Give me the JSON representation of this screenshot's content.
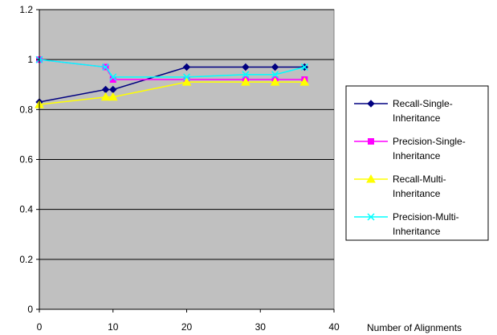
{
  "chart_data": {
    "type": "line",
    "xlabel": "Number of Alignments",
    "ylabel": "",
    "title": "",
    "xlim": [
      0,
      40
    ],
    "ylim": [
      0,
      1.2
    ],
    "x_ticks": [
      0,
      10,
      20,
      30,
      40
    ],
    "y_ticks": [
      "0",
      "0.2",
      "0.4",
      "0.6",
      "0.8",
      "1",
      "1.2"
    ],
    "y_tick_values": [
      0,
      0.2,
      0.4,
      0.6,
      0.8,
      1.0,
      1.2
    ],
    "grid": "horizontal",
    "plot_background": "#c0c0c0",
    "legend_position": "right",
    "series": [
      {
        "name": "Recall-Single-Inheritance",
        "legend_lines": [
          "Recall-Single-",
          "Inheritance"
        ],
        "color": "#000080",
        "marker": "diamond",
        "x": [
          0,
          9,
          10,
          20,
          28,
          32,
          36
        ],
        "y": [
          0.83,
          0.88,
          0.88,
          0.97,
          0.97,
          0.97,
          0.97
        ]
      },
      {
        "name": "Precision-Single-Inheritance",
        "legend_lines": [
          "Precision-Single-",
          "Inheritance"
        ],
        "color": "#ff00ff",
        "marker": "square",
        "x": [
          0,
          9,
          10,
          20,
          28,
          32,
          36
        ],
        "y": [
          1.0,
          0.97,
          0.92,
          0.92,
          0.92,
          0.92,
          0.92
        ]
      },
      {
        "name": "Recall-Multi-Inheritance",
        "legend_lines": [
          "Recall-Multi-",
          "Inheritance"
        ],
        "color": "#ffff00",
        "marker": "triangle",
        "x": [
          0,
          9,
          10,
          20,
          28,
          32,
          36
        ],
        "y": [
          0.82,
          0.85,
          0.85,
          0.91,
          0.91,
          0.91,
          0.91
        ]
      },
      {
        "name": "Precision-Multi-Inheritance",
        "legend_lines": [
          "Precision-Multi-",
          "Inheritance"
        ],
        "color": "#00ffff",
        "marker": "x",
        "x": [
          0,
          9,
          10,
          20,
          28,
          32,
          36
        ],
        "y": [
          1.0,
          0.97,
          0.93,
          0.93,
          0.94,
          0.94,
          0.97
        ]
      }
    ]
  }
}
